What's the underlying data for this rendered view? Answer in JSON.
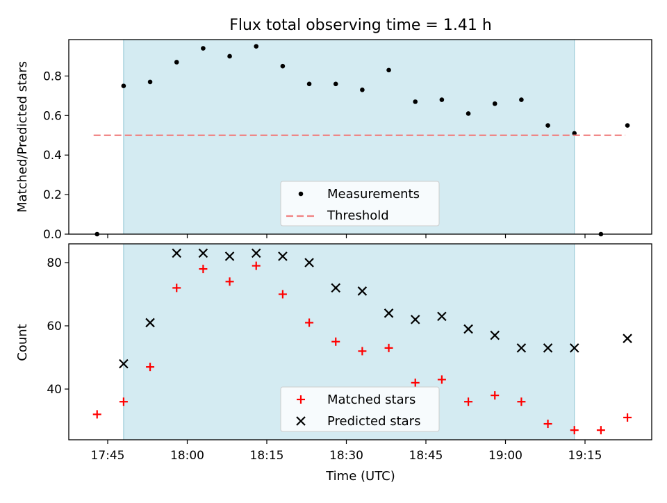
{
  "chart_data": [
    {
      "type": "scatter",
      "title": "Flux total observing time = 1.41 h",
      "xlabel": "",
      "ylabel": "Matched/Predicted stars",
      "ylim": [
        0,
        1.0
      ],
      "yticks": [
        "0.0",
        "0.2",
        "0.4",
        "0.6",
        "0.8"
      ],
      "shaded_span": {
        "start": "17:48",
        "end": "19:13",
        "color": "#add8e6"
      },
      "legend_position": "bottom-center",
      "series": [
        {
          "name": "Measurements",
          "marker": "dot",
          "color": "#000000",
          "x": [
            "17:43",
            "17:48",
            "17:53",
            "17:58",
            "18:03",
            "18:08",
            "18:13",
            "18:18",
            "18:23",
            "18:28",
            "18:33",
            "18:38",
            "18:43",
            "18:48",
            "18:53",
            "18:58",
            "19:03",
            "19:08",
            "19:13",
            "19:18",
            "19:23"
          ],
          "y": [
            0.0,
            0.75,
            0.77,
            0.87,
            0.94,
            0.9,
            0.95,
            0.85,
            0.76,
            0.76,
            0.73,
            0.83,
            0.67,
            0.68,
            0.61,
            0.66,
            0.68,
            0.55,
            0.51,
            0.0,
            0.55
          ]
        },
        {
          "name": "Threshold",
          "marker": "dashed-line",
          "color": "#f08080",
          "x": [
            "17:43",
            "19:23"
          ],
          "y": [
            0.5,
            0.5
          ]
        }
      ]
    },
    {
      "type": "scatter",
      "xlabel": "Time (UTC)",
      "ylabel": "Count",
      "ylim": [
        24,
        86
      ],
      "yticks": [
        "40",
        "60",
        "80"
      ],
      "xticks": [
        "17:45",
        "18:00",
        "18:15",
        "18:30",
        "18:45",
        "19:00",
        "19:15"
      ],
      "shaded_span": {
        "start": "17:48",
        "end": "19:13",
        "color": "#add8e6"
      },
      "legend_position": "bottom-center",
      "series": [
        {
          "name": "Matched stars",
          "marker": "plus",
          "color": "#ff0000",
          "x": [
            "17:43",
            "17:48",
            "17:53",
            "17:58",
            "18:03",
            "18:08",
            "18:13",
            "18:18",
            "18:23",
            "18:28",
            "18:33",
            "18:38",
            "18:43",
            "18:48",
            "18:53",
            "18:58",
            "19:03",
            "19:08",
            "19:13",
            "19:18",
            "19:23"
          ],
          "y": [
            32,
            36,
            47,
            72,
            78,
            74,
            79,
            70,
            61,
            55,
            52,
            53,
            42,
            43,
            36,
            38,
            36,
            29,
            27,
            27,
            31
          ]
        },
        {
          "name": "Predicted stars",
          "marker": "x",
          "color": "#000000",
          "x": [
            "17:48",
            "17:53",
            "17:58",
            "18:03",
            "18:08",
            "18:13",
            "18:18",
            "18:23",
            "18:28",
            "18:33",
            "18:38",
            "18:43",
            "18:48",
            "18:53",
            "18:58",
            "19:03",
            "19:08",
            "19:13",
            "19:23"
          ],
          "y": [
            48,
            61,
            83,
            83,
            82,
            83,
            82,
            80,
            72,
            71,
            64,
            62,
            63,
            59,
            57,
            53,
            53,
            53,
            56
          ]
        }
      ]
    }
  ]
}
